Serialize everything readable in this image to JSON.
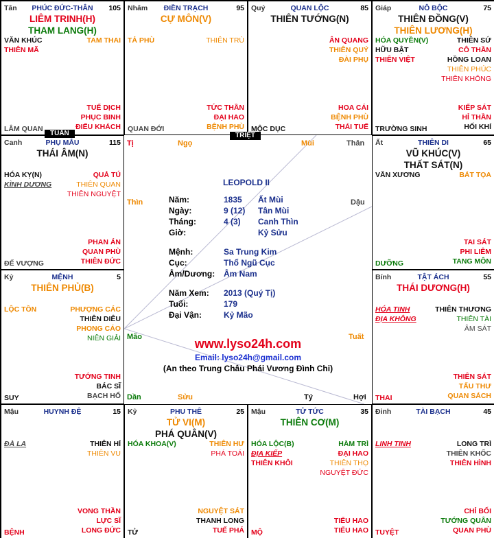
{
  "colors": {
    "red": "#e3001a",
    "orange": "#ee8800",
    "green": "#0a7a0a",
    "blue": "#1a2f8c"
  },
  "cells": {
    "ty": {
      "can": "Tân",
      "palace": "PHÚC ĐỨC-THÂN",
      "num": "105",
      "major": [
        {
          "t": "LIÊM TRINH(H)",
          "c": "red"
        },
        {
          "t": "THAM LANG(H)",
          "c": "green"
        }
      ],
      "left": [
        {
          "t": "VĂN KHÚC",
          "c": "black"
        },
        {
          "t": "THIÊN MÃ",
          "c": "red"
        }
      ],
      "right": [
        {
          "t": "TAM THAI",
          "c": "orange"
        }
      ],
      "br": [
        {
          "t": "TUẾ DỊCH",
          "c": "red"
        },
        {
          "t": "PHỤC BINH",
          "c": "red"
        },
        {
          "t": "ĐIẾU KHÁCH",
          "c": "red"
        }
      ],
      "bottom": {
        "t": "LÂM QUAN",
        "c": "grey"
      },
      "tag": "TUẦN"
    },
    "ngo": {
      "can": "Nhâm",
      "palace": "ĐIỀN TRẠCH",
      "num": "95",
      "major": [
        {
          "t": "CỰ MÔN(V)",
          "c": "orange"
        }
      ],
      "left": [
        {
          "t": "TẢ PHÙ",
          "c": "orange"
        }
      ],
      "right": [
        {
          "t": "THIÊN TRÙ",
          "c": "orange",
          "nb": true
        }
      ],
      "br": [
        {
          "t": "TỨC THẦN",
          "c": "red"
        },
        {
          "t": "ĐẠI HAO",
          "c": "red"
        },
        {
          "t": "BỆNH PHÙ",
          "c": "orange"
        }
      ],
      "bottom": {
        "t": "QUAN ĐỚI",
        "c": "grey"
      },
      "tag": "TRIỆT"
    },
    "mui": {
      "can": "Quý",
      "palace": "QUAN LỘC",
      "num": "85",
      "major": [
        {
          "t": "THIÊN TƯỚNG(N)",
          "c": "black"
        }
      ],
      "left": [],
      "right": [
        {
          "t": "ÂN QUANG",
          "c": "red"
        },
        {
          "t": "THIÊN QUÝ",
          "c": "orange"
        },
        {
          "t": "ĐÀI PHỤ",
          "c": "orange"
        }
      ],
      "br": [
        {
          "t": "HOA CÁI",
          "c": "red"
        },
        {
          "t": "BỆNH PHÙ",
          "c": "orange"
        },
        {
          "t": "THÁI TUẾ",
          "c": "red"
        }
      ],
      "bottom": {
        "t": "MỘC DỤC",
        "c": "black"
      }
    },
    "than": {
      "can": "Giáp",
      "palace": "NÔ BỘC",
      "num": "75",
      "major": [
        {
          "t": "THIÊN ĐỒNG(V)",
          "c": "black"
        },
        {
          "t": "THIÊN LƯƠNG(H)",
          "c": "orange"
        }
      ],
      "left": [
        {
          "t": "HÓA QUYỀN(V)",
          "c": "green"
        },
        {
          "t": "HỮU BẬT",
          "c": "black"
        },
        {
          "t": "THIÊN VIỆT",
          "c": "red"
        }
      ],
      "right": [
        {
          "t": "THIÊN SỨ",
          "c": "black"
        },
        {
          "t": "CÔ THẦN",
          "c": "red"
        },
        {
          "t": "HỒNG LOAN",
          "c": "black"
        },
        {
          "t": "THIÊN PHÚC",
          "c": "orange",
          "nb": true
        },
        {
          "t": "THIÊN KHÔNG",
          "c": "red",
          "nb": true
        }
      ],
      "br": [
        {
          "t": "KIẾP SÁT",
          "c": "red"
        },
        {
          "t": "HỈ THẦN",
          "c": "red"
        },
        {
          "t": "HỐI KHÍ",
          "c": "black"
        }
      ],
      "bottom": {
        "t": "TRƯỜNG SINH",
        "c": "black"
      }
    },
    "thin": {
      "can": "Canh",
      "palace": "PHỤ MẪU",
      "num": "115",
      "major": [
        {
          "t": "THÁI ÂM(N)",
          "c": "black"
        }
      ],
      "left": [
        {
          "t": "HÓA KỴ(N)",
          "c": "black"
        },
        {
          "t": "KÌNH DƯƠNG",
          "c": "grey",
          "ul": true
        }
      ],
      "right": [
        {
          "t": "QUẢ TÚ",
          "c": "red"
        },
        {
          "t": "THIÊN QUAN",
          "c": "orange",
          "nb": true
        },
        {
          "t": "THIÊN NGUYỆT",
          "c": "red",
          "nb": true
        }
      ],
      "br": [
        {
          "t": "PHAN ÁN",
          "c": "red"
        },
        {
          "t": "QUAN PHÙ",
          "c": "red"
        },
        {
          "t": "THIÊN ĐỨC",
          "c": "red"
        }
      ],
      "bottom": {
        "t": "ĐẾ VƯỢNG",
        "c": "grey"
      }
    },
    "dau": {
      "can": "Ất",
      "palace": "THIÊN DI",
      "num": "65",
      "major": [
        {
          "t": "VŨ KHÚC(V)",
          "c": "black"
        },
        {
          "t": "THẤT SÁT(N)",
          "c": "black"
        }
      ],
      "left": [
        {
          "t": "VĂN XƯƠNG",
          "c": "black"
        }
      ],
      "right": [
        {
          "t": "BÁT TỌA",
          "c": "orange"
        }
      ],
      "br": [
        {
          "t": "TAI SÁT",
          "c": "red"
        },
        {
          "t": "PHI LIÊM",
          "c": "red"
        },
        {
          "t": "TANG MÔN",
          "c": "green"
        }
      ],
      "bottom": {
        "t": "DƯỠNG",
        "c": "green"
      }
    },
    "mao": {
      "can": "Kỷ",
      "palace": "MỆNH",
      "num": "5",
      "major": [
        {
          "t": "THIÊN PHỦ(B)",
          "c": "orange"
        }
      ],
      "left": [
        {
          "t": "LỘC TỒN",
          "c": "orange"
        }
      ],
      "right": [
        {
          "t": "PHƯỢNG CÁC",
          "c": "orange"
        },
        {
          "t": "THIÊN DIÊU",
          "c": "black"
        },
        {
          "t": "PHONG CÁO",
          "c": "orange"
        },
        {
          "t": "NIÊN GIẢI",
          "c": "green",
          "nb": true
        }
      ],
      "br": [
        {
          "t": "TƯỚNG TINH",
          "c": "red"
        },
        {
          "t": "BÁC SĨ",
          "c": "black"
        },
        {
          "t": "BẠCH HỔ",
          "c": "grey"
        }
      ],
      "bottom": {
        "t": "SUY",
        "c": "black"
      }
    },
    "tuat": {
      "can": "Bính",
      "palace": "TẬT ÁCH",
      "num": "55",
      "major": [
        {
          "t": "THÁI DƯƠNG(H)",
          "c": "red"
        }
      ],
      "left": [
        {
          "t": "HÓA TINH",
          "c": "red",
          "ul": true
        },
        {
          "t": "ĐỊA KHÔNG",
          "c": "red",
          "ul": true
        }
      ],
      "right": [
        {
          "t": "THIÊN THƯƠNG",
          "c": "black"
        },
        {
          "t": "THIÊN TÀI",
          "c": "green",
          "nb": true
        },
        {
          "t": "ÂM SÁT",
          "c": "grey",
          "nb": true
        }
      ],
      "br": [
        {
          "t": "THIÊN SÁT",
          "c": "red"
        },
        {
          "t": "TẤU THƯ",
          "c": "orange"
        },
        {
          "t": "QUAN SÁCH",
          "c": "orange"
        }
      ],
      "bottom": {
        "t": "THAI",
        "c": "red"
      }
    },
    "dan": {
      "can": "Mậu",
      "palace": "HUYNH ĐỆ",
      "num": "15",
      "major": [],
      "left": [
        {
          "t": "ĐÀ LA",
          "c": "grey",
          "ul": true
        }
      ],
      "right": [
        {
          "t": "THIÊN HỈ",
          "c": "black"
        },
        {
          "t": "THIÊN VU",
          "c": "orange",
          "nb": true
        }
      ],
      "br": [
        {
          "t": "VONG THẦN",
          "c": "red"
        },
        {
          "t": "LỰC SĨ",
          "c": "red"
        },
        {
          "t": "LONG ĐỨC",
          "c": "red"
        }
      ],
      "bottom": {
        "t": "BỆNH",
        "c": "red"
      }
    },
    "suu": {
      "can": "Kỷ",
      "palace": "PHU THÊ",
      "num": "25",
      "major": [
        {
          "t": "TỬ VI(M)",
          "c": "orange"
        },
        {
          "t": "PHÁ QUÂN(V)",
          "c": "black"
        }
      ],
      "left": [
        {
          "t": "HÓA KHOA(V)",
          "c": "green"
        }
      ],
      "right": [
        {
          "t": "THIÊN HƯ",
          "c": "orange"
        },
        {
          "t": "PHÁ TOÁI",
          "c": "red",
          "nb": true
        }
      ],
      "br": [
        {
          "t": "NGUYỆT SÁT",
          "c": "orange"
        },
        {
          "t": "THANH LONG",
          "c": "black"
        },
        {
          "t": "TUẾ PHÁ",
          "c": "red"
        }
      ],
      "bottom": {
        "t": "TỬ",
        "c": "black"
      }
    },
    "ty2": {
      "can": "Mậu",
      "palace": "TỬ TỨC",
      "num": "35",
      "major": [
        {
          "t": "THIÊN CƠ(M)",
          "c": "green"
        }
      ],
      "left": [
        {
          "t": "HÓA LỘC(B)",
          "c": "green"
        },
        {
          "t": "ĐỊA KIẾP",
          "c": "red",
          "ul": true
        },
        {
          "t": "THIÊN KHÔI",
          "c": "red"
        }
      ],
      "right": [
        {
          "t": "HÀM TRÌ",
          "c": "green"
        },
        {
          "t": "ĐẠI HAO",
          "c": "red"
        },
        {
          "t": "THIÊN THỌ",
          "c": "orange",
          "nb": true
        },
        {
          "t": "NGUYỆT ĐỨC",
          "c": "red",
          "nb": true
        }
      ],
      "br": [
        {
          "t": "TIỂU HAO",
          "c": "red"
        },
        {
          "t": "TIỂU HAO",
          "c": "red"
        }
      ],
      "bottom": {
        "t": "MỘ",
        "c": "red"
      }
    },
    "hoi": {
      "can": "Đinh",
      "palace": "TÀI BẠCH",
      "num": "45",
      "major": [],
      "left": [
        {
          "t": "LINH TINH",
          "c": "red",
          "ul": true
        }
      ],
      "right": [
        {
          "t": "LONG TRÌ",
          "c": "black"
        },
        {
          "t": "THIÊN KHỐC",
          "c": "grey"
        },
        {
          "t": "THIÊN HÌNH",
          "c": "red"
        }
      ],
      "br": [
        {
          "t": "CHỈ BỐI",
          "c": "red"
        },
        {
          "t": "TƯỚNG QUÂN",
          "c": "green"
        },
        {
          "t": "QUAN PHÙ",
          "c": "red"
        }
      ],
      "bottom": {
        "t": "TUYỆT",
        "c": "red"
      }
    }
  },
  "center": {
    "branches": {
      "ty": "Tị",
      "ngo": "Ngọ",
      "mui": "Mùi",
      "than": "Thân",
      "thin": "Thìn",
      "dau": "Dậu",
      "mao": "Mão",
      "tuat": "Tuất",
      "dan": "Dần",
      "suu": "Sửu",
      "ty2": "Tý",
      "hoi": "Hợi"
    },
    "name": "LEOPOLD II",
    "nam_label": "Năm:",
    "nam_val": "1835",
    "nam_can": "Ất Mùi",
    "ngay_label": "Ngày:",
    "ngay_val": "9 (12)",
    "ngay_can": "Tân Mùi",
    "thang_label": "Tháng:",
    "thang_val": "4 (3)",
    "thang_can": "Canh Thìn",
    "gio_label": "Giờ:",
    "gio_can": "Kỷ Sửu",
    "menh_label": "Mệnh:",
    "menh_val": "Sa Trung Kim",
    "cuc_label": "Cục:",
    "cuc_val": "Thổ Ngũ Cục",
    "amduong_label": "Âm/Dương:",
    "amduong_val": "Âm Nam",
    "namxem_label": "Năm Xem:",
    "namxem_val": "2013 (Quý Tị)",
    "tuoi_label": "Tuổi:",
    "tuoi_val": "179",
    "daivan_label": "Đại Vận:",
    "daivan_val": "Kỷ Mão",
    "website": "www.lyso24h.com",
    "email": "Email: lyso24h@gmail.com",
    "school": "(An theo Trung Châu Phái Vương Đình Chi)"
  }
}
